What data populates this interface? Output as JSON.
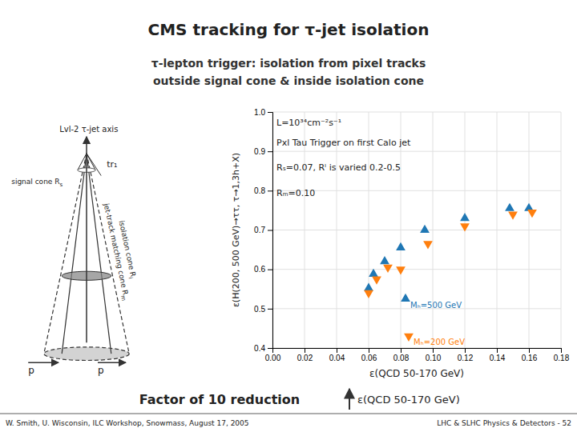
{
  "chart_data": {
    "type": "scatter",
    "title": "CMS tracking for τ-jet isolation",
    "subtitle": [
      "τ-lepton trigger: isolation from pixel tracks",
      "outside signal cone & inside isolation cone"
    ],
    "x_label": "ε(QCD 50-170 GeV)",
    "y_label": "ε(H(200, 500 GeV)→ττ, τ→1,3h+X)",
    "annotations": [
      "L=10³⁴cm⁻²s⁻¹",
      "Pxl Tau Trigger on first Calo jet",
      "Rₛ=0.07, Rᴵ is varied 0.2-0.5",
      "Rₘ=0.10"
    ],
    "diagram_labels": [
      "p",
      "p",
      "Lvl-2 τ-jet axis",
      "tr₁",
      "signal cone R",
      "s",
      "jet-track matching cone R",
      "m",
      "isolation cone R",
      "i"
    ],
    "callout": [
      "Factor of 10 reduction",
      "ε(QCD 50-170 GeV)"
    ],
    "footer": [
      "W. Smith, U. Wisconsin, ILC Workshop, Snowmass, August 17, 2005",
      "LHC & SLHC Physics & Detectors - 52"
    ],
    "series": [
      {
        "name": "Mₕ=500 GeV",
        "marker": "triangle-up",
        "x": [
          0.06,
          0.063,
          0.07,
          0.08,
          0.083,
          0.095,
          0.12,
          0.148,
          0.16
        ],
        "values": [
          0.552,
          0.588,
          0.62,
          0.655,
          0.525,
          0.7,
          0.73,
          0.755,
          0.755
        ]
      },
      {
        "name": "Mₕ=200 GeV",
        "marker": "triangle-down",
        "x": [
          0.06,
          0.065,
          0.072,
          0.08,
          0.085,
          0.097,
          0.12,
          0.15,
          0.162
        ],
        "values": [
          0.54,
          0.575,
          0.605,
          0.6,
          0.43,
          0.665,
          0.71,
          0.74,
          0.745
        ]
      }
    ],
    "xlim": [
      0,
      0.18
    ],
    "ylim": [
      0.4,
      1.0
    ],
    "xticks": [
      {
        "value": 0,
        "label": "0.00"
      },
      {
        "value": 0.02,
        "label": "0.02"
      },
      {
        "value": 0.04,
        "label": "0.04"
      },
      {
        "value": 0.06,
        "label": "0.06"
      },
      {
        "value": 0.08,
        "label": "0.08"
      },
      {
        "value": 0.1,
        "label": "0.10"
      },
      {
        "value": 0.12,
        "label": "0.12"
      },
      {
        "value": 0.14,
        "label": "0.14"
      },
      {
        "value": 0.16,
        "label": "0.16"
      },
      {
        "value": 0.18,
        "label": "0.18"
      }
    ],
    "yticks": [
      0.4,
      0.5,
      0.6,
      0.7,
      0.8,
      0.9,
      {
        "value": 1.0,
        "label": "1.0"
      }
    ],
    "grid": true
  }
}
